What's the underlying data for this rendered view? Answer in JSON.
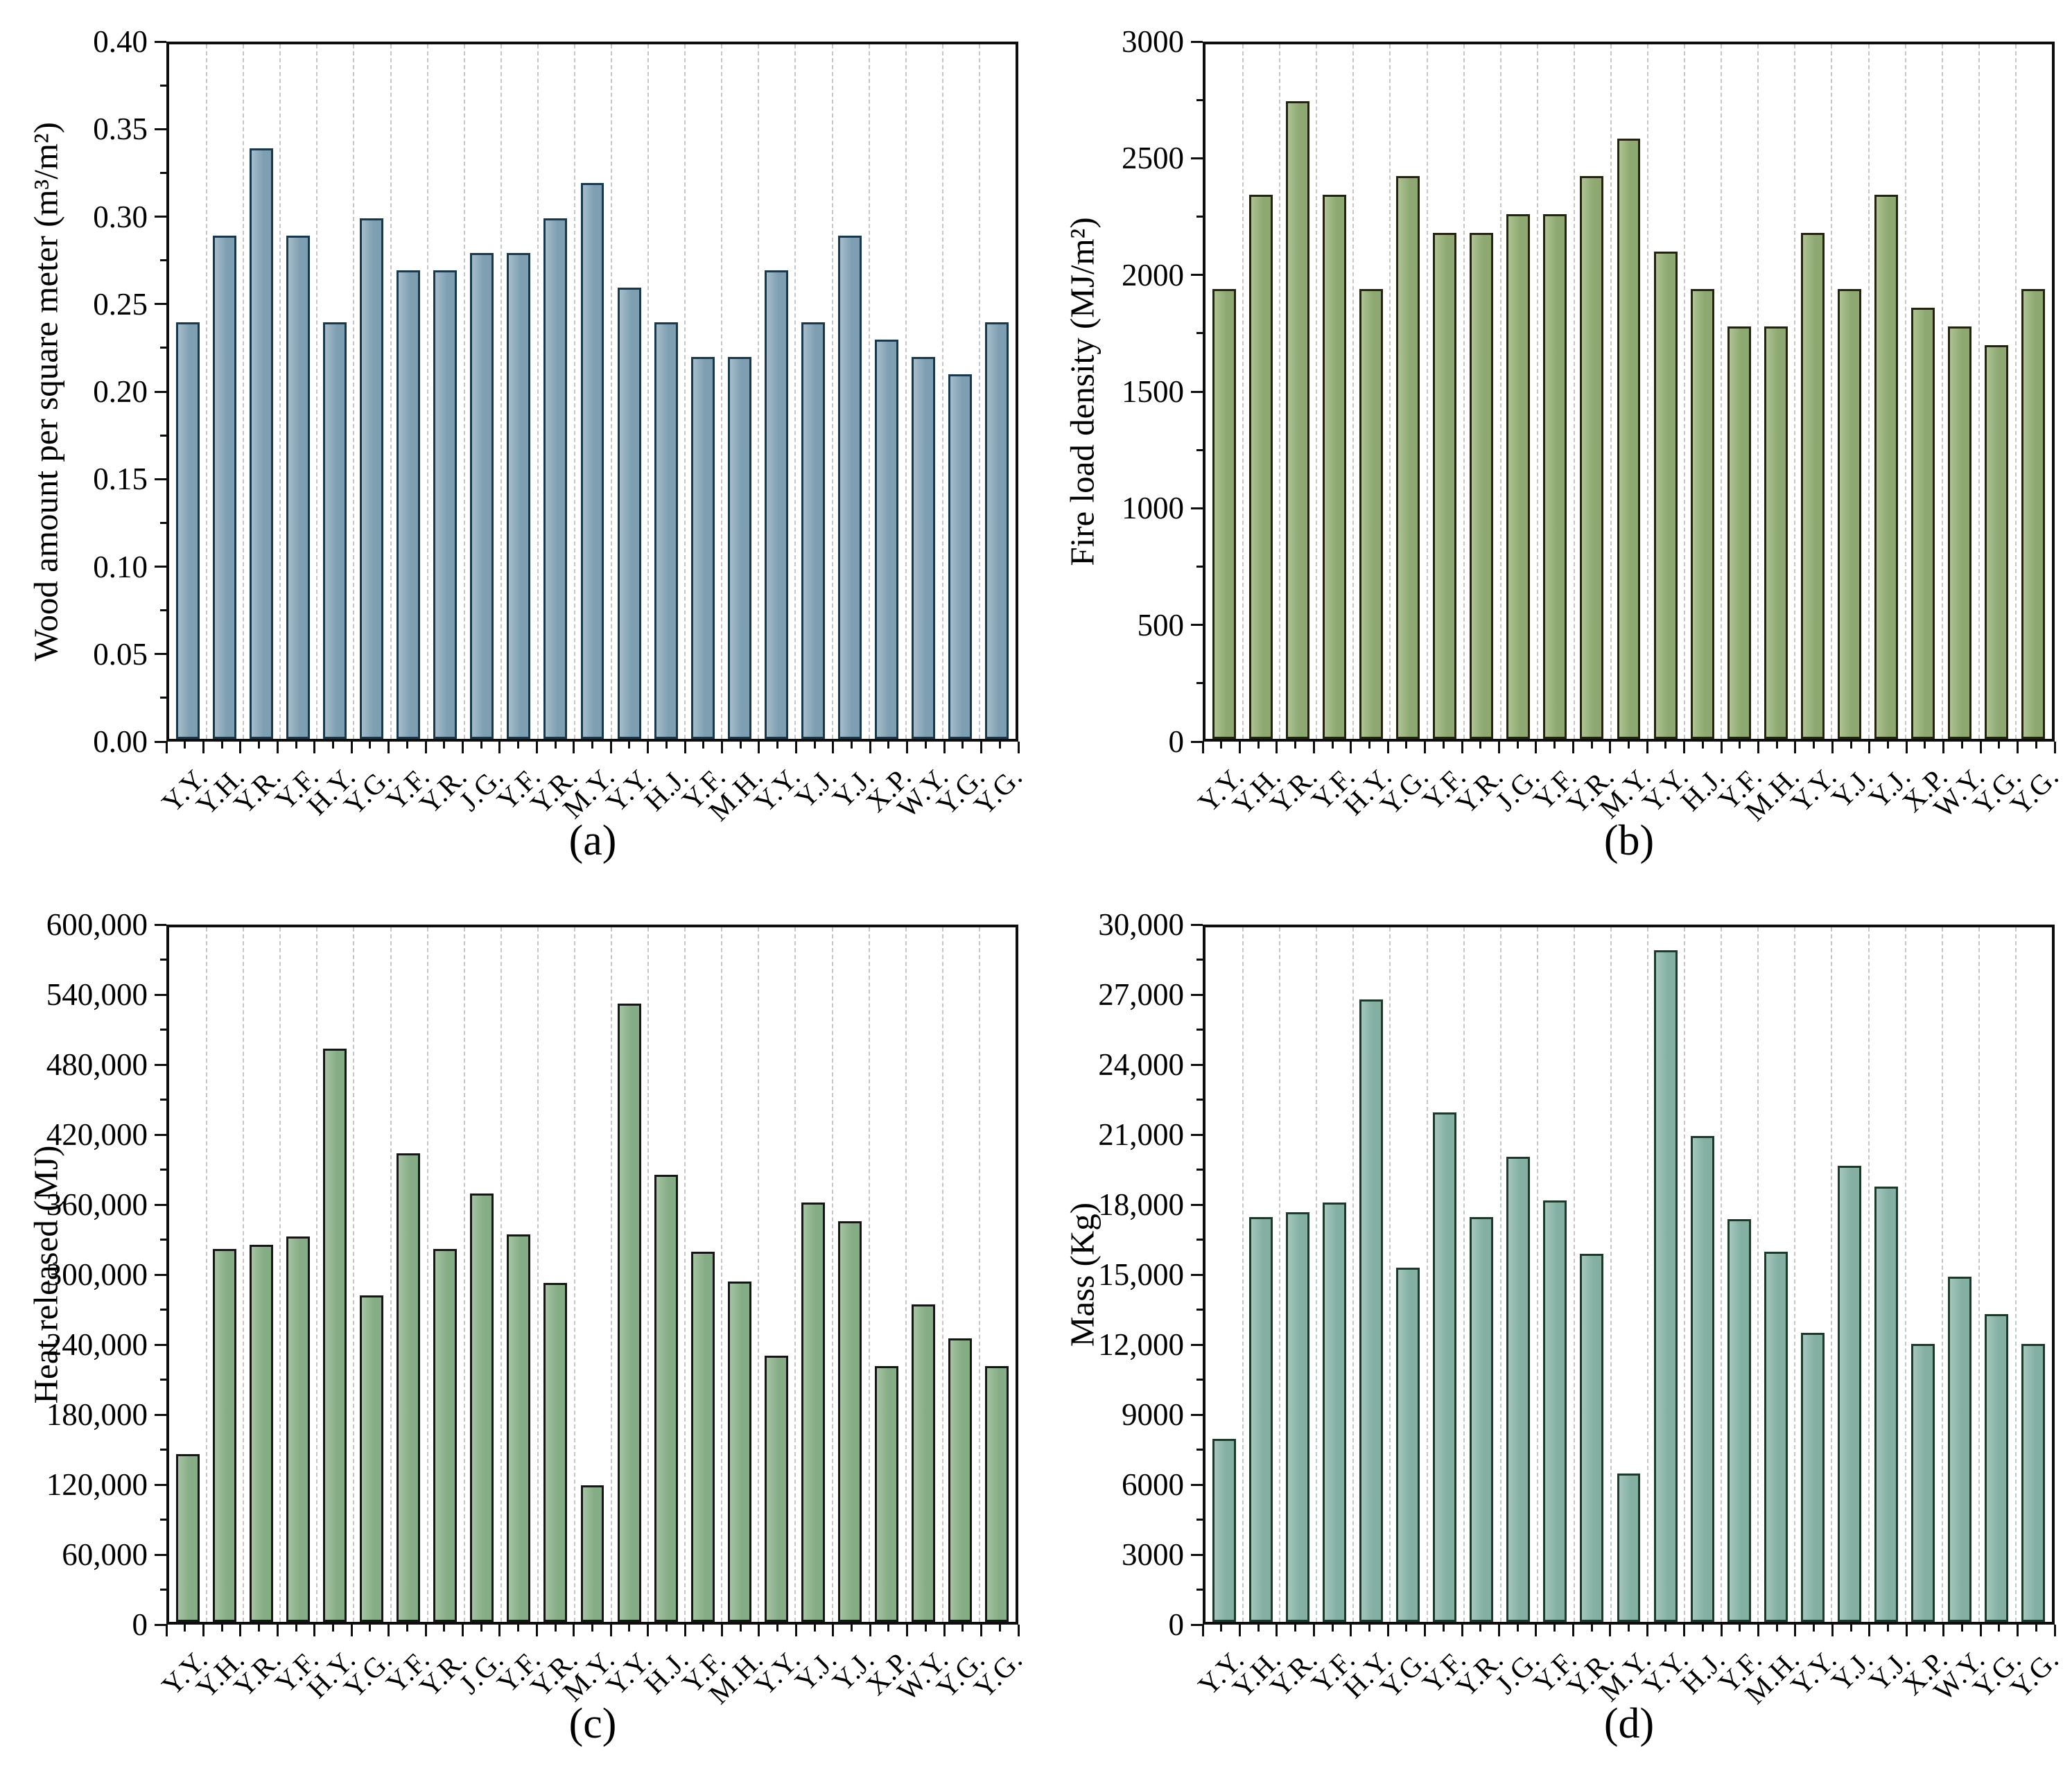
{
  "chart_data": [
    {
      "type": "bar",
      "panel": "a",
      "caption": "(a)",
      "ylabel": "Wood amount per square meter (m³/m²)",
      "xlabel": "",
      "legend": "none",
      "grid": "vertical-dashed",
      "categories": [
        "Y.Y.",
        "Y.H.",
        "Y.R.",
        "Y.F.",
        "H.Y.",
        "Y.G.",
        "Y.F.",
        "Y.R.",
        "J.G.",
        "Y.F.",
        "Y.R.",
        "M.Y.",
        "Y.Y.",
        "H.J.",
        "Y.F.",
        "M.H.",
        "Y.Y.",
        "Y.J.",
        "Y.J.",
        "X.P.",
        "W.Y.",
        "Y.G.",
        "Y.G."
      ],
      "values": [
        0.24,
        0.29,
        0.34,
        0.29,
        0.24,
        0.3,
        0.27,
        0.27,
        0.28,
        0.28,
        0.3,
        0.32,
        0.26,
        0.24,
        0.22,
        0.22,
        0.27,
        0.24,
        0.29,
        0.23,
        0.22,
        0.21,
        0.24
      ],
      "ylim": [
        0,
        0.4
      ],
      "ytick_labels": [
        "0.00",
        "0.05",
        "0.10",
        "0.15",
        "0.20",
        "0.25",
        "0.30",
        "0.35",
        "0.40"
      ],
      "bar_color": "#7e9fb2",
      "bar_color_light": "#a6bdca",
      "bar_border": "#17384d"
    },
    {
      "type": "bar",
      "panel": "b",
      "caption": "(b)",
      "ylabel": "Fire load density (MJ/m²)",
      "xlabel": "",
      "legend": "none",
      "grid": "vertical-dashed",
      "categories": [
        "Y.Y.",
        "Y.H.",
        "Y.R.",
        "Y.F.",
        "H.Y.",
        "Y.G.",
        "Y.F.",
        "Y.R.",
        "J.G.",
        "Y.F.",
        "Y.R.",
        "M.Y.",
        "Y.Y.",
        "H.J.",
        "Y.F.",
        "M.H.",
        "Y.Y.",
        "Y.J.",
        "Y.J.",
        "X.P.",
        "W.Y.",
        "Y.G.",
        "Y.G."
      ],
      "values": [
        1944,
        2349,
        2754,
        2349,
        1944,
        2430,
        2187,
        2187,
        2268,
        2268,
        2430,
        2592,
        2106,
        1944,
        1782,
        1782,
        2187,
        1944,
        2349,
        1863,
        1782,
        1701,
        1944
      ],
      "ylim": [
        0,
        3000
      ],
      "ytick_labels": [
        "0",
        "500",
        "1000",
        "1500",
        "2000",
        "2500",
        "3000"
      ],
      "bar_color": "#8da971",
      "bar_color_light": "#aec393",
      "bar_border": "#23230f"
    },
    {
      "type": "bar",
      "panel": "c",
      "caption": "(c)",
      "ylabel": "Heat released (MJ)",
      "xlabel": "",
      "legend": "none",
      "grid": "vertical-dashed",
      "categories": [
        "Y.Y.",
        "Y.H.",
        "Y.R.",
        "Y.F.",
        "H.Y.",
        "Y.G.",
        "Y.F.",
        "Y.R.",
        "J.G.",
        "Y.F.",
        "Y.R.",
        "M.Y.",
        "Y.Y.",
        "H.J.",
        "Y.F.",
        "M.H.",
        "Y.Y.",
        "Y.J.",
        "Y.J.",
        "X.P.",
        "W.Y.",
        "Y.G.",
        "Y.G."
      ],
      "values": [
        145000,
        322000,
        326000,
        333000,
        495000,
        282000,
        405000,
        322000,
        370000,
        335000,
        293000,
        118000,
        534000,
        386000,
        320000,
        294000,
        230000,
        362000,
        346000,
        221000,
        274000,
        245000,
        221000
      ],
      "ylim": [
        0,
        600000
      ],
      "ytick_labels": [
        "0",
        "60,000",
        "120,000",
        "180,000",
        "240,000",
        "300,000",
        "360,000",
        "420,000",
        "480,000",
        "540,000",
        "600,000"
      ],
      "bar_color": "#85ad85",
      "bar_color_light": "#a6c3a3",
      "bar_border": "#161616"
    },
    {
      "type": "bar",
      "panel": "d",
      "caption": "(d)",
      "ylabel": "Mass (Kg)",
      "xlabel": "",
      "legend": "none",
      "grid": "vertical-dashed",
      "categories": [
        "Y.Y.",
        "Y.H.",
        "Y.R.",
        "Y.F.",
        "H.Y.",
        "Y.G.",
        "Y.F.",
        "Y.R.",
        "J.G.",
        "Y.F.",
        "Y.R.",
        "M.Y.",
        "Y.Y.",
        "H.J.",
        "Y.F.",
        "M.H.",
        "Y.Y.",
        "Y.J.",
        "Y.J.",
        "X.P.",
        "W.Y.",
        "Y.G.",
        "Y.G."
      ],
      "values": [
        7900,
        17500,
        17700,
        18100,
        26900,
        15300,
        22000,
        17500,
        20100,
        18200,
        15900,
        6400,
        29000,
        21000,
        17400,
        16000,
        12500,
        19700,
        18800,
        12000,
        14900,
        13300,
        12000
      ],
      "ylim": [
        0,
        30000
      ],
      "ytick_labels": [
        "0",
        "3000",
        "6000",
        "9000",
        "12,000",
        "15,000",
        "18,000",
        "21,000",
        "24,000",
        "27,000",
        "30,000"
      ],
      "bar_color": "#84b0a4",
      "bar_color_light": "#a5c6bc",
      "bar_border": "#1c3a2a"
    }
  ]
}
